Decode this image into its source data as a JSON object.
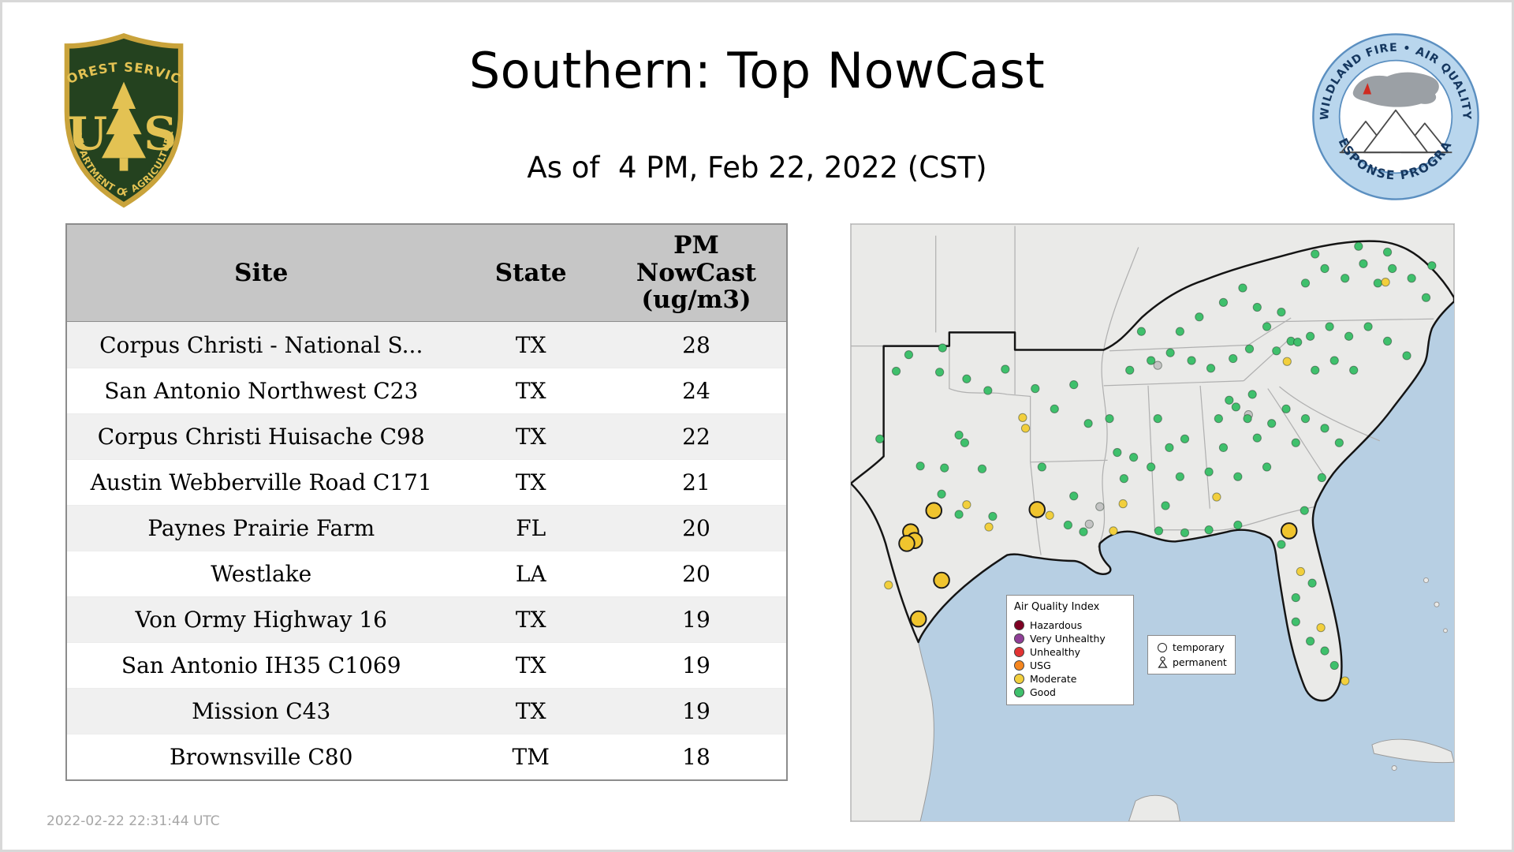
{
  "page": {
    "title": "Southern: Top NowCast",
    "subtitle": "As of  4 PM, Feb 22, 2022 (CST)",
    "generated_at": "2022-02-22 22:31:44 UTC"
  },
  "header_logos": {
    "forest_service": {
      "arc_top": "FOREST SERVICE",
      "monogram_left": "U",
      "monogram_right": "S",
      "arc_bottom": "DEPARTMENT OF AGRICULTURE"
    },
    "airfire": {
      "arc_top": "WILDLAND FIRE • AIR QUALITY",
      "arc_bottom": "RESPONSE PROGRAM"
    }
  },
  "table": {
    "columns": [
      "Site",
      "State",
      "PM\nNowCast\n(ug/m3)"
    ],
    "rows": [
      [
        "Corpus Christi - National S...",
        "TX",
        "28"
      ],
      [
        "San Antonio Northwest C23",
        "TX",
        "24"
      ],
      [
        "Corpus Christi Huisache C98",
        "TX",
        "22"
      ],
      [
        "Austin Webberville Road C171",
        "TX",
        "21"
      ],
      [
        "Paynes Prairie Farm",
        "FL",
        "20"
      ],
      [
        "Westlake",
        "LA",
        "20"
      ],
      [
        "Von Ormy Highway 16",
        "TX",
        "19"
      ],
      [
        "San Antonio IH35 C1069",
        "TX",
        "19"
      ],
      [
        "Mission C43",
        "TX",
        "19"
      ],
      [
        "Brownsville C80",
        "TM",
        "18"
      ]
    ]
  },
  "map": {
    "legend": {
      "title": "Air Quality Index",
      "items": [
        {
          "label": "Hazardous",
          "color": "#7e0023"
        },
        {
          "label": "Very Unhealthy",
          "color": "#8f3f97"
        },
        {
          "label": "Unhealthy",
          "color": "#e23333"
        },
        {
          "label": "USG",
          "color": "#f5861f"
        },
        {
          "label": "Moderate",
          "color": "#f2cf3d"
        },
        {
          "label": "Good",
          "color": "#3fc06c"
        }
      ]
    },
    "marker_legend": [
      {
        "label": "temporary",
        "symbol": "circle"
      },
      {
        "label": "permanent",
        "symbol": "person"
      }
    ],
    "colors": {
      "g": "#3fc06c",
      "m": "#f2cf3d",
      "x": "#c4c4c4",
      "T": "#f0c42e"
    },
    "points": [
      [
        60,
        135,
        "g"
      ],
      [
        95,
        128,
        "g"
      ],
      [
        47,
        152,
        "g"
      ],
      [
        92,
        153,
        "g"
      ],
      [
        142,
        172,
        "g"
      ],
      [
        160,
        150,
        "g"
      ],
      [
        120,
        160,
        "g"
      ],
      [
        178,
        200,
        "m"
      ],
      [
        118,
        226,
        "g"
      ],
      [
        112,
        218,
        "g"
      ],
      [
        97,
        252,
        "g"
      ],
      [
        94,
        279,
        "g"
      ],
      [
        72,
        250,
        "g"
      ],
      [
        30,
        222,
        "g"
      ],
      [
        136,
        253,
        "g"
      ],
      [
        147,
        302,
        "g"
      ],
      [
        112,
        300,
        "g"
      ],
      [
        120,
        290,
        "m"
      ],
      [
        143,
        313,
        "m"
      ],
      [
        39,
        373,
        "m"
      ],
      [
        86,
        296,
        "T"
      ],
      [
        62,
        318,
        "T"
      ],
      [
        66,
        327,
        "T"
      ],
      [
        58,
        330,
        "T"
      ],
      [
        94,
        368,
        "T"
      ],
      [
        70,
        408,
        "T"
      ],
      [
        193,
        295,
        "T"
      ],
      [
        206,
        301,
        "m"
      ],
      [
        225,
        311,
        "g"
      ],
      [
        241,
        318,
        "g"
      ],
      [
        198,
        251,
        "g"
      ],
      [
        231,
        281,
        "g"
      ],
      [
        191,
        170,
        "g"
      ],
      [
        211,
        191,
        "g"
      ],
      [
        231,
        166,
        "g"
      ],
      [
        181,
        211,
        "m"
      ],
      [
        246,
        206,
        "g"
      ],
      [
        318,
        146,
        "x"
      ],
      [
        412,
        197,
        "x"
      ],
      [
        247,
        310,
        "x"
      ],
      [
        258,
        292,
        "x"
      ],
      [
        268,
        201,
        "g"
      ],
      [
        276,
        236,
        "g"
      ],
      [
        283,
        263,
        "g"
      ],
      [
        282,
        289,
        "m"
      ],
      [
        293,
        241,
        "g"
      ],
      [
        272,
        317,
        "m"
      ],
      [
        318,
        201,
        "g"
      ],
      [
        330,
        231,
        "g"
      ],
      [
        341,
        261,
        "g"
      ],
      [
        326,
        291,
        "g"
      ],
      [
        319,
        317,
        "g"
      ],
      [
        346,
        222,
        "g"
      ],
      [
        311,
        251,
        "g"
      ],
      [
        289,
        151,
        "g"
      ],
      [
        311,
        141,
        "g"
      ],
      [
        331,
        133,
        "g"
      ],
      [
        353,
        141,
        "g"
      ],
      [
        373,
        149,
        "g"
      ],
      [
        396,
        139,
        "g"
      ],
      [
        413,
        129,
        "g"
      ],
      [
        341,
        111,
        "g"
      ],
      [
        361,
        96,
        "g"
      ],
      [
        386,
        81,
        "g"
      ],
      [
        406,
        66,
        "g"
      ],
      [
        421,
        86,
        "g"
      ],
      [
        301,
        111,
        "g"
      ],
      [
        431,
        106,
        "g"
      ],
      [
        446,
        91,
        "g"
      ],
      [
        456,
        121,
        "g"
      ],
      [
        471,
        61,
        "g"
      ],
      [
        491,
        46,
        "g"
      ],
      [
        512,
        56,
        "g"
      ],
      [
        531,
        41,
        "g"
      ],
      [
        546,
        61,
        "g"
      ],
      [
        561,
        46,
        "g"
      ],
      [
        581,
        56,
        "g"
      ],
      [
        596,
        76,
        "g"
      ],
      [
        481,
        31,
        "g"
      ],
      [
        526,
        23,
        "g"
      ],
      [
        556,
        29,
        "g"
      ],
      [
        554,
        60,
        "m"
      ],
      [
        602,
        43,
        "g"
      ],
      [
        441,
        131,
        "g"
      ],
      [
        463,
        122,
        "g"
      ],
      [
        476,
        116,
        "g"
      ],
      [
        496,
        106,
        "g"
      ],
      [
        516,
        116,
        "g"
      ],
      [
        536,
        106,
        "g"
      ],
      [
        556,
        121,
        "g"
      ],
      [
        576,
        136,
        "g"
      ],
      [
        501,
        141,
        "g"
      ],
      [
        521,
        151,
        "g"
      ],
      [
        481,
        151,
        "g"
      ],
      [
        452,
        142,
        "m"
      ],
      [
        451,
        191,
        "g"
      ],
      [
        471,
        201,
        "g"
      ],
      [
        491,
        211,
        "g"
      ],
      [
        506,
        226,
        "g"
      ],
      [
        436,
        206,
        "g"
      ],
      [
        461,
        226,
        "g"
      ],
      [
        392,
        182,
        "g"
      ],
      [
        399,
        189,
        "g"
      ],
      [
        381,
        201,
        "g"
      ],
      [
        411,
        201,
        "g"
      ],
      [
        421,
        221,
        "g"
      ],
      [
        386,
        231,
        "g"
      ],
      [
        371,
        256,
        "g"
      ],
      [
        401,
        261,
        "g"
      ],
      [
        431,
        251,
        "g"
      ],
      [
        488,
        262,
        "g"
      ],
      [
        379,
        282,
        "m"
      ],
      [
        416,
        176,
        "g"
      ],
      [
        454,
        317,
        "T"
      ],
      [
        466,
        359,
        "m"
      ],
      [
        487,
        417,
        "m"
      ],
      [
        512,
        472,
        "m"
      ],
      [
        461,
        386,
        "g"
      ],
      [
        478,
        371,
        "g"
      ],
      [
        491,
        441,
        "g"
      ],
      [
        501,
        456,
        "g"
      ],
      [
        446,
        331,
        "g"
      ],
      [
        470,
        296,
        "g"
      ],
      [
        401,
        311,
        "g"
      ],
      [
        371,
        316,
        "g"
      ],
      [
        346,
        319,
        "g"
      ],
      [
        461,
        411,
        "g"
      ],
      [
        476,
        431,
        "g"
      ]
    ]
  }
}
